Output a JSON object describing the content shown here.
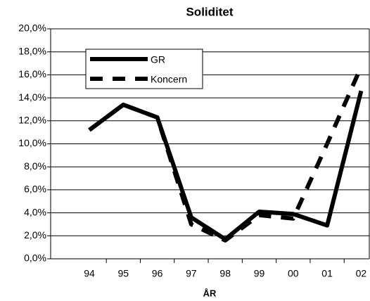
{
  "chart_data": {
    "type": "line",
    "title": "Soliditet",
    "x_label": "ÅR",
    "categories": [
      "94",
      "95",
      "96",
      "97",
      "98",
      "99",
      "00",
      "01",
      "02"
    ],
    "series": [
      {
        "name": "GR",
        "color": "#000000",
        "dash": "solid",
        "values": [
          11.2,
          13.4,
          12.3,
          3.6,
          1.7,
          4.1,
          3.9,
          2.9,
          14.6
        ]
      },
      {
        "name": "Koncern",
        "color": "#000000",
        "dash": "dashed",
        "values": [
          11.2,
          13.4,
          12.3,
          3.0,
          1.6,
          3.8,
          3.5,
          10.0,
          16.7
        ]
      }
    ],
    "ylim": [
      0,
      20
    ],
    "yticks": [
      {
        "value": 0,
        "label": "0,0%"
      },
      {
        "value": 2,
        "label": "2,0%"
      },
      {
        "value": 4,
        "label": "4,0%"
      },
      {
        "value": 6,
        "label": "6,0%"
      },
      {
        "value": 8,
        "label": "8,0%"
      },
      {
        "value": 10,
        "label": "10,0%"
      },
      {
        "value": 12,
        "label": "12,0%"
      },
      {
        "value": 14,
        "label": "14,0%"
      },
      {
        "value": 16,
        "label": "16,0%"
      },
      {
        "value": 18,
        "label": "18,0%"
      },
      {
        "value": 20,
        "label": "20,0%"
      }
    ],
    "grid": true,
    "legend": "upper left"
  }
}
